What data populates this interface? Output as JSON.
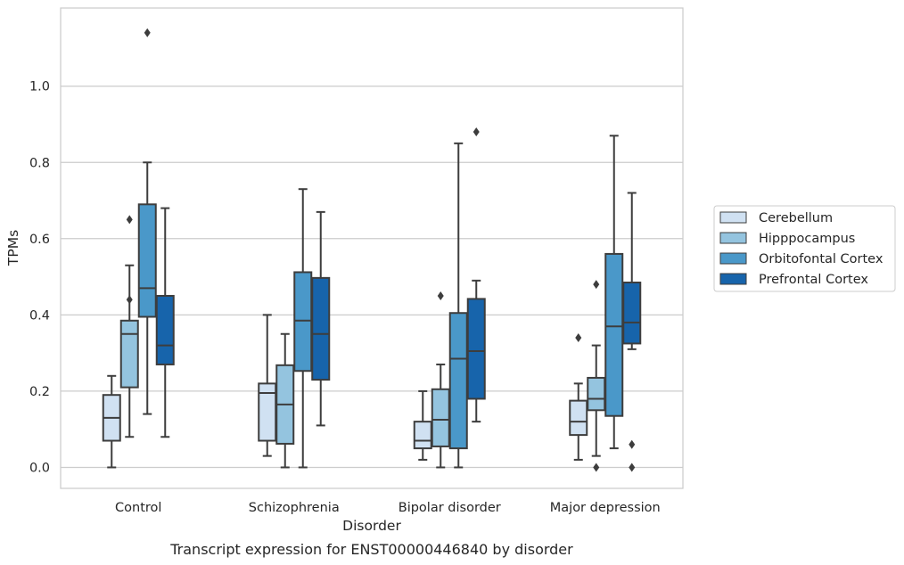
{
  "chart_data": {
    "type": "boxplot",
    "title": "",
    "caption": "Transcript expression for ENST00000446840 by disorder",
    "xlabel": "Disorder",
    "ylabel": "TPMs",
    "ylim": [
      -0.055,
      1.205
    ],
    "yticks": [
      0.0,
      0.2,
      0.4,
      0.6,
      0.8,
      1.0
    ],
    "ytick_labels": [
      "0.0",
      "0.2",
      "0.4",
      "0.6",
      "0.8",
      "1.0"
    ],
    "grid": "horizontal",
    "legend_position": "right",
    "categories": [
      "Control",
      "Schizophrenia",
      "Bipolar disorder",
      "Major depression"
    ],
    "series": [
      {
        "name": "Cerebellum",
        "color": "#d0e1f2",
        "boxes": [
          {
            "whisker_low": 0.0,
            "q1": 0.07,
            "median": 0.13,
            "q3": 0.19,
            "whisker_high": 0.24,
            "outliers": []
          },
          {
            "whisker_low": 0.03,
            "q1": 0.07,
            "median": 0.195,
            "q3": 0.22,
            "whisker_high": 0.4,
            "outliers": []
          },
          {
            "whisker_low": 0.02,
            "q1": 0.05,
            "median": 0.07,
            "q3": 0.12,
            "whisker_high": 0.2,
            "outliers": []
          },
          {
            "whisker_low": 0.02,
            "q1": 0.085,
            "median": 0.12,
            "q3": 0.175,
            "whisker_high": 0.22,
            "outliers": [
              0.34
            ]
          }
        ]
      },
      {
        "name": "Hipppocampus",
        "color": "#94c4df",
        "boxes": [
          {
            "whisker_low": 0.08,
            "q1": 0.21,
            "median": 0.35,
            "q3": 0.385,
            "whisker_high": 0.53,
            "outliers": [
              0.44,
              0.65
            ]
          },
          {
            "whisker_low": 0.0,
            "q1": 0.062,
            "median": 0.165,
            "q3": 0.268,
            "whisker_high": 0.35,
            "outliers": []
          },
          {
            "whisker_low": 0.0,
            "q1": 0.055,
            "median": 0.125,
            "q3": 0.205,
            "whisker_high": 0.27,
            "outliers": [
              0.45
            ]
          },
          {
            "whisker_low": 0.03,
            "q1": 0.15,
            "median": 0.18,
            "q3": 0.235,
            "whisker_high": 0.32,
            "outliers": [
              0.48,
              0.0
            ]
          }
        ]
      },
      {
        "name": "Orbitofontal Cortex",
        "color": "#4a98c9",
        "boxes": [
          {
            "whisker_low": 0.14,
            "q1": 0.395,
            "median": 0.47,
            "q3": 0.69,
            "whisker_high": 0.8,
            "outliers": [
              1.14
            ]
          },
          {
            "whisker_low": 0.0,
            "q1": 0.253,
            "median": 0.385,
            "q3": 0.512,
            "whisker_high": 0.73,
            "outliers": []
          },
          {
            "whisker_low": 0.0,
            "q1": 0.05,
            "median": 0.285,
            "q3": 0.405,
            "whisker_high": 0.85,
            "outliers": []
          },
          {
            "whisker_low": 0.05,
            "q1": 0.135,
            "median": 0.37,
            "q3": 0.56,
            "whisker_high": 0.87,
            "outliers": []
          }
        ]
      },
      {
        "name": "Prefrontal Cortex",
        "color": "#1764ab",
        "boxes": [
          {
            "whisker_low": 0.08,
            "q1": 0.27,
            "median": 0.32,
            "q3": 0.45,
            "whisker_high": 0.68,
            "outliers": []
          },
          {
            "whisker_low": 0.11,
            "q1": 0.23,
            "median": 0.35,
            "q3": 0.497,
            "whisker_high": 0.67,
            "outliers": []
          },
          {
            "whisker_low": 0.12,
            "q1": 0.18,
            "median": 0.305,
            "q3": 0.442,
            "whisker_high": 0.49,
            "outliers": [
              0.88
            ]
          },
          {
            "whisker_low": 0.31,
            "q1": 0.325,
            "median": 0.38,
            "q3": 0.485,
            "whisker_high": 0.72,
            "outliers": [
              0.06,
              0.0
            ]
          }
        ]
      }
    ]
  }
}
